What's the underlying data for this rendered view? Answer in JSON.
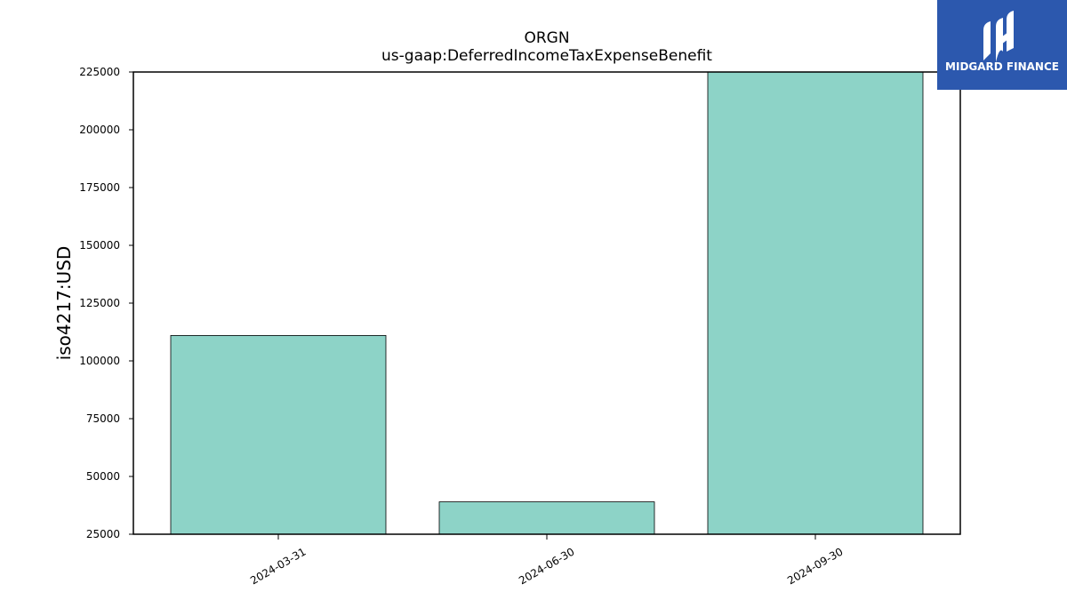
{
  "brand": {
    "logo_text": "MIDGARD FINANCE",
    "background_color": "#2c58ae",
    "icon": "midgard-logo-icon"
  },
  "chart_data": {
    "type": "bar",
    "title": "ORGN",
    "subtitle": "us-gaap:DeferredIncomeTaxExpenseBenefit",
    "xlabel": "",
    "ylabel": "iso4217:USD",
    "categories": [
      "2024-03-31",
      "2024-06-30",
      "2024-09-30"
    ],
    "values": [
      111000,
      39000,
      225000
    ],
    "ylim": [
      25000,
      225000
    ],
    "yticks": [
      25000,
      50000,
      75000,
      100000,
      125000,
      150000,
      175000,
      200000,
      225000
    ],
    "bar_color": "#8dd3c7",
    "grid": false,
    "legend": "none"
  }
}
